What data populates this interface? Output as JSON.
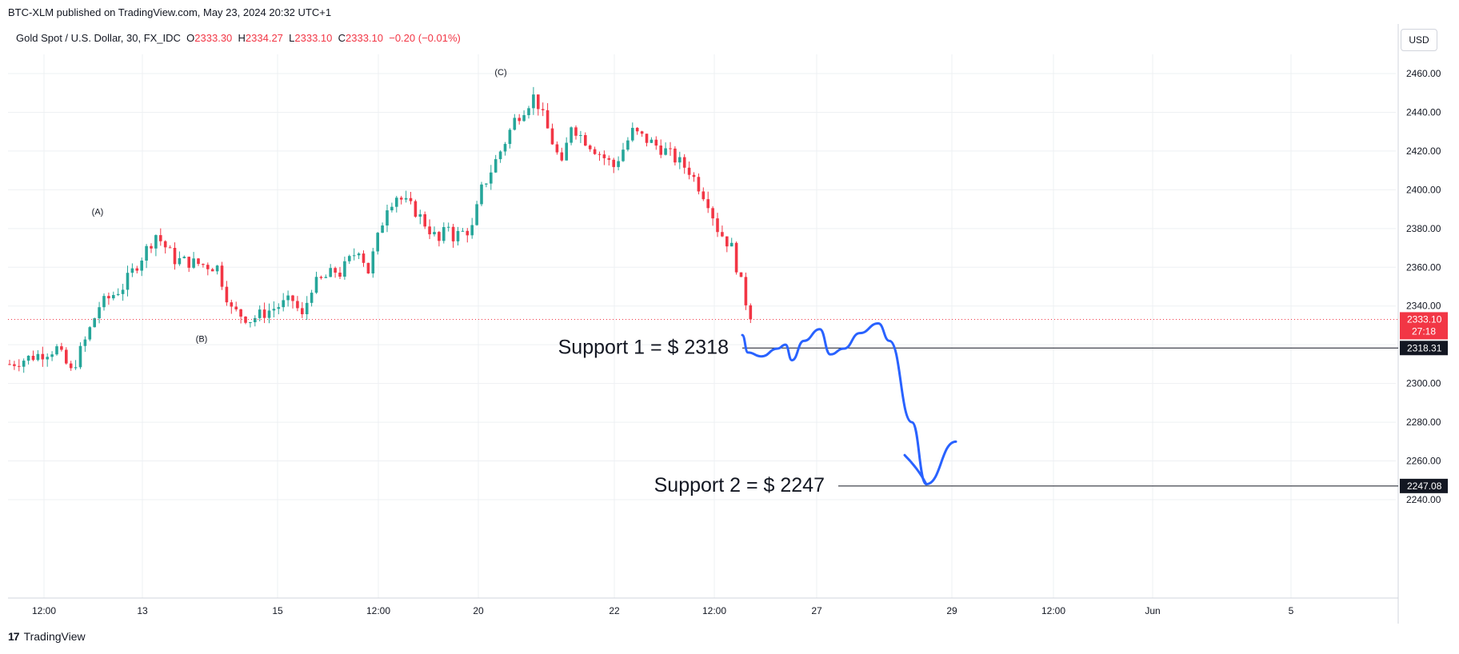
{
  "header": {
    "published": "BTC-XLM published on TradingView.com, May 23, 2024 20:32 UTC+1",
    "symbol_label": "Gold Spot / U.S. Dollar, 30, FX_IDC",
    "open_label": "O",
    "open_value": "2333.30",
    "high_label": "H",
    "high_value": "2334.27",
    "low_label": "L",
    "low_value": "2333.10",
    "close_label": "C",
    "close_value": "2333.10",
    "change": "−0.20 (−0.01%)",
    "currency_button": "USD"
  },
  "footer": {
    "brand": "TradingView",
    "logo": "17"
  },
  "colors": {
    "up": "#26a69a",
    "down": "#f23645",
    "drawing": "#2962ff",
    "grid": "#eef0f3",
    "axis_text": "#131722"
  },
  "chart_data": {
    "type": "candlestick",
    "title": "Gold Spot / U.S. Dollar, 30, FX_IDC",
    "interval": "30",
    "ylim": [
      2220,
      2470
    ],
    "y_ticks": [
      "2240.00",
      "2260.00",
      "2280.00",
      "2300.00",
      "2320.00",
      "2340.00",
      "2360.00",
      "2380.00",
      "2400.00",
      "2420.00",
      "2440.00",
      "2460.00"
    ],
    "x_ticks": [
      "12:00",
      "13",
      "15",
      "12:00",
      "20",
      "22",
      "12:00",
      "27",
      "29",
      "12:00",
      "Jun",
      "5"
    ],
    "grid": true,
    "price_path": {
      "x": [
        0,
        10,
        13,
        16,
        19,
        24,
        31,
        35,
        44,
        47,
        51,
        57,
        60,
        62,
        64,
        69,
        70,
        74,
        76,
        80,
        82,
        86,
        91,
        93,
        94,
        98,
        100,
        105,
        107,
        111,
        112,
        117,
        119,
        121,
        128,
        132,
        139,
        144,
        148,
        150,
        153,
        157
      ],
      "y": [
        2310,
        2318,
        2306,
        2322,
        2340,
        2350,
        2377,
        2364,
        2360,
        2338,
        2333,
        2340,
        2343,
        2334,
        2350,
        2358,
        2357,
        2370,
        2358,
        2392,
        2397,
        2389,
        2373,
        2382,
        2376,
        2380,
        2400,
        2425,
        2436,
        2448,
        2444,
        2412,
        2434,
        2428,
        2412,
        2430,
        2420,
        2410,
        2394,
        2380,
        2370,
        2333
      ]
    },
    "last_price": 2333.1,
    "last_price_label": "2333.10",
    "countdown_label": "27:18",
    "wave_labels": [
      {
        "text": "(A)",
        "price": 2378
      },
      {
        "text": "(B)",
        "price": 2333
      },
      {
        "text": "(C)",
        "price": 2450
      }
    ],
    "support_levels": [
      {
        "name": "Support 1 = $ 2318",
        "price": 2318.31,
        "label": "2318.31"
      },
      {
        "name": "Support 2 = $ 2247",
        "price": 2247.08,
        "label": "2247.08"
      }
    ],
    "projection_path": {
      "description": "hand-drawn projection: choppy range near support 1, then drop to support 2, then rebound",
      "prices": [
        2325,
        2316,
        2314,
        2318,
        2320,
        2312,
        2322,
        2328,
        2315,
        2318,
        2326,
        2331,
        2322,
        2280,
        2248,
        2270
      ]
    }
  }
}
